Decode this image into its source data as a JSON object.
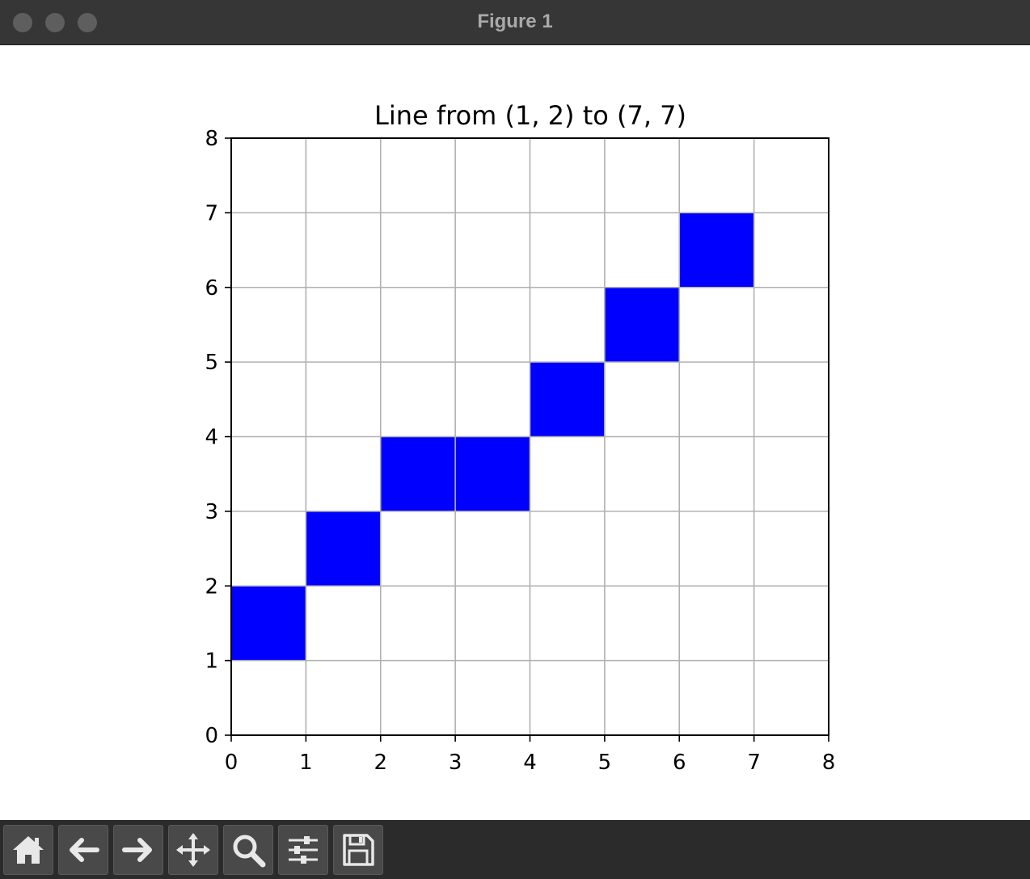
{
  "window": {
    "title": "Figure 1"
  },
  "toolbar": {
    "buttons": [
      {
        "name": "home-button",
        "icon": "home-icon"
      },
      {
        "name": "back-button",
        "icon": "arrow-left-icon"
      },
      {
        "name": "forward-button",
        "icon": "arrow-right-icon"
      },
      {
        "name": "pan-button",
        "icon": "move-icon"
      },
      {
        "name": "zoom-button",
        "icon": "magnifier-icon"
      },
      {
        "name": "configure-subplots-button",
        "icon": "sliders-icon"
      },
      {
        "name": "save-button",
        "icon": "floppy-disk-icon"
      }
    ]
  },
  "chart_data": {
    "type": "heatmap",
    "title": "Line from (1, 2) to (7, 7)",
    "xlabel": "",
    "ylabel": "",
    "xlim": [
      0,
      8
    ],
    "ylim": [
      0,
      8
    ],
    "xticks": [
      "0",
      "1",
      "2",
      "3",
      "4",
      "5",
      "6",
      "7",
      "8"
    ],
    "yticks": [
      "0",
      "1",
      "2",
      "3",
      "4",
      "5",
      "6",
      "7",
      "8"
    ],
    "grid": true,
    "cell_color": "#0000ff",
    "filled_cells": [
      {
        "x": 0,
        "y": 1
      },
      {
        "x": 1,
        "y": 2
      },
      {
        "x": 2,
        "y": 3
      },
      {
        "x": 3,
        "y": 3
      },
      {
        "x": 4,
        "y": 4
      },
      {
        "x": 5,
        "y": 5
      },
      {
        "x": 6,
        "y": 6
      }
    ]
  }
}
